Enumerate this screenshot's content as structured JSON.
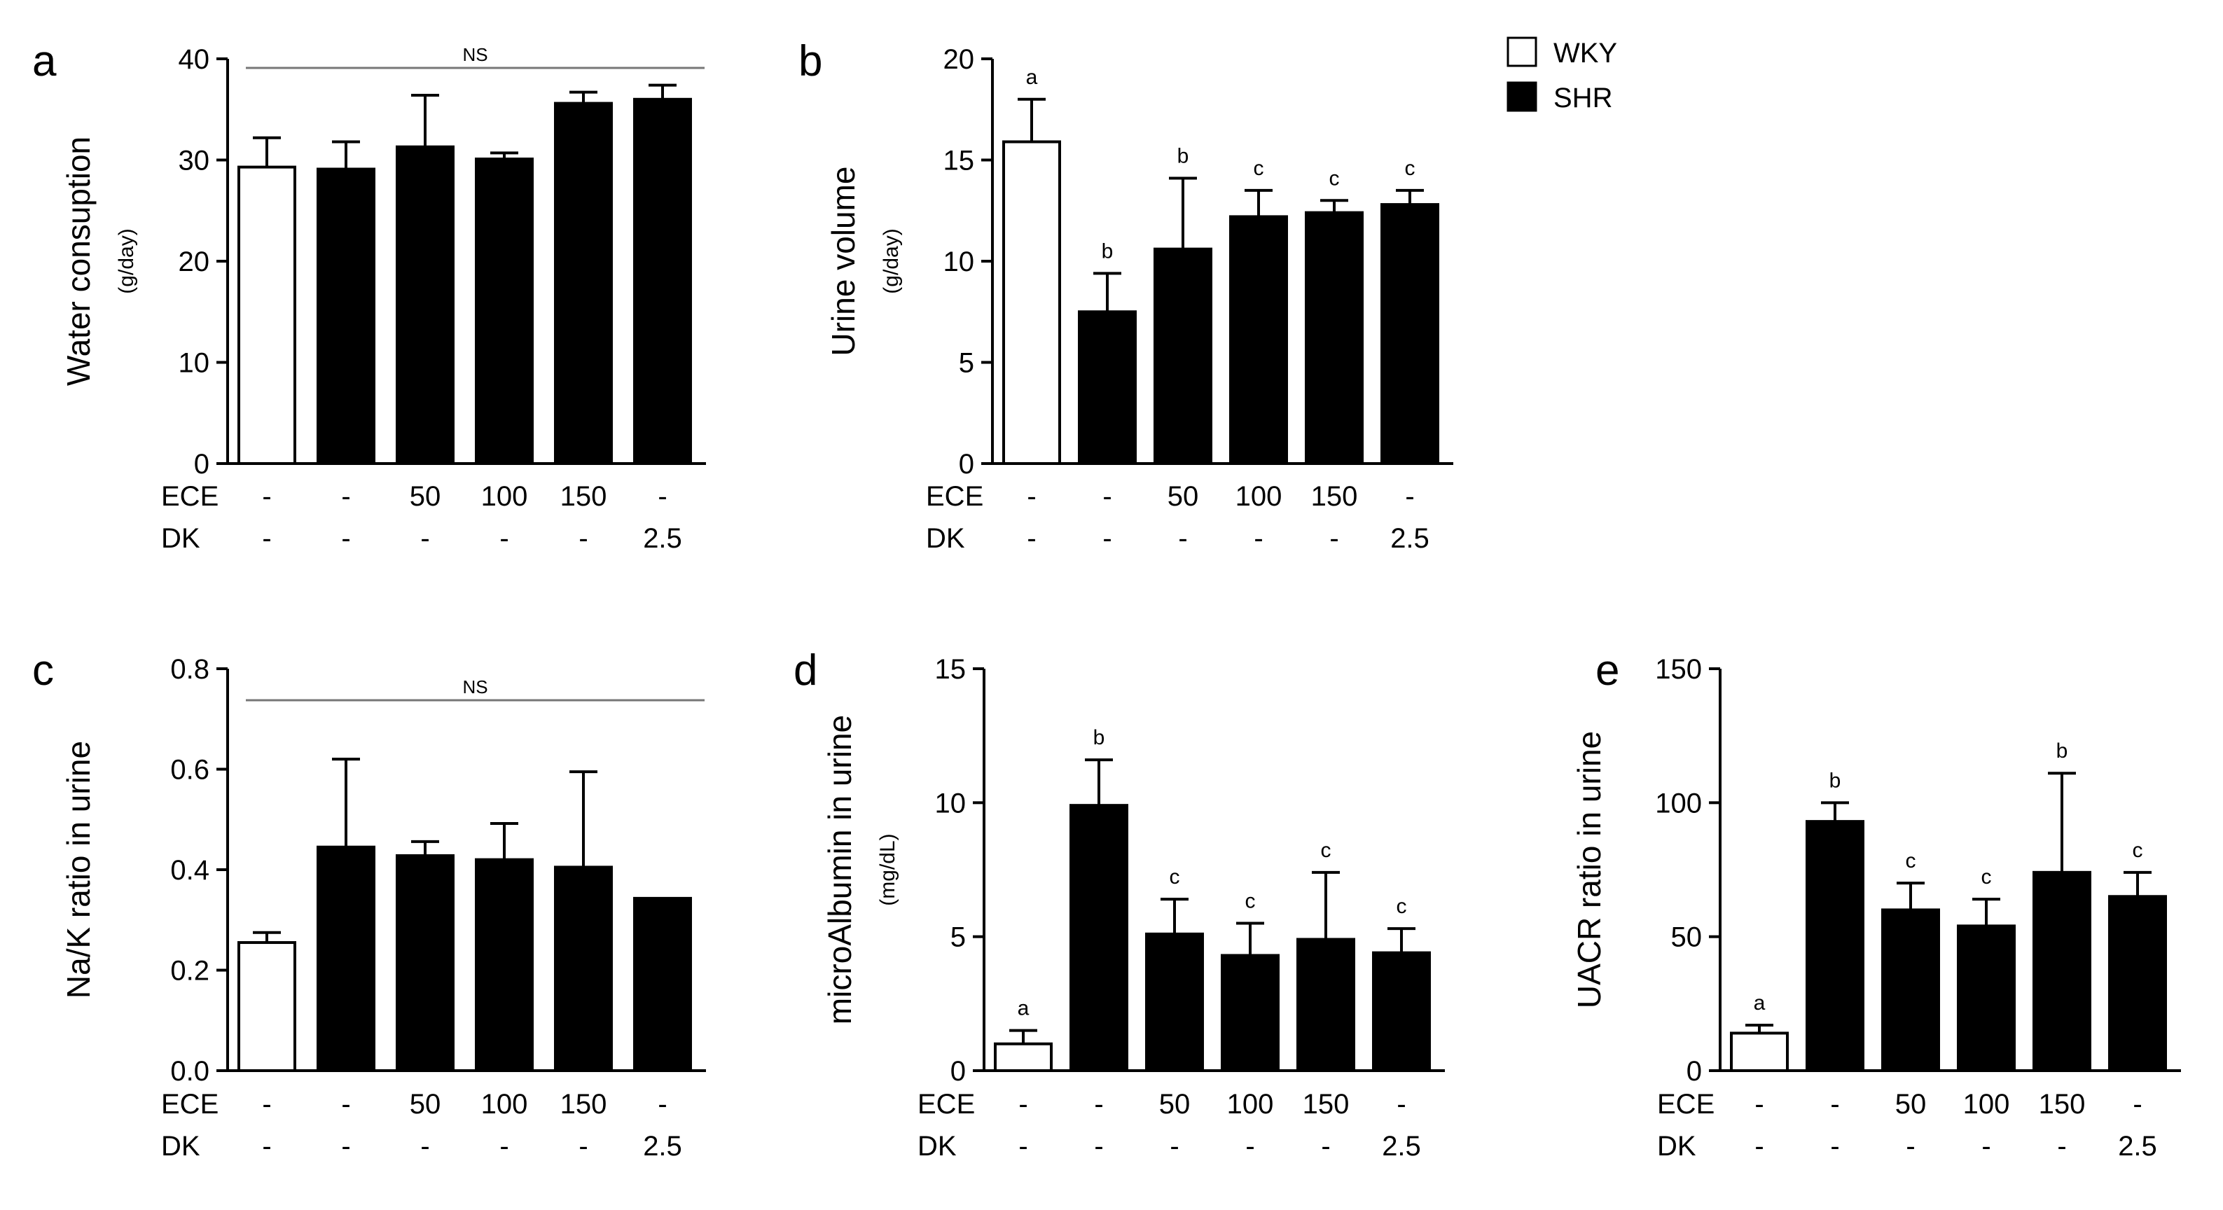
{
  "colors": {
    "wky": "#ffffff",
    "shr": "#000000",
    "ns_line": "#777777",
    "axis": "#000000"
  },
  "legend": [
    {
      "name": "WKY",
      "swatch": "#ffffff"
    },
    {
      "name": "SHR",
      "swatch": "#000000"
    }
  ],
  "row_labels": {
    "ece": "ECE",
    "dk": "DK"
  },
  "chart_data": [
    {
      "panel": "a",
      "type": "bar",
      "ylabel": "Water consuption",
      "yunit": "(g/day)",
      "ylim": [
        0,
        40
      ],
      "yticks": [
        0,
        10,
        20,
        30,
        40
      ],
      "ytick_labels": [
        "0",
        "10",
        "20",
        "30",
        "40"
      ],
      "values": [
        29.3,
        29.1,
        31.3,
        30.1,
        35.6,
        36.0
      ],
      "errors": [
        2.9,
        2.7,
        5.1,
        0.6,
        1.1,
        1.4
      ],
      "groups": [
        "WKY",
        "SHR",
        "SHR",
        "SHR",
        "SHR",
        "SHR"
      ],
      "ece": [
        "-",
        "-",
        "50",
        "100",
        "150",
        "-"
      ],
      "dk": [
        "-",
        "-",
        "-",
        "-",
        "-",
        "2.5"
      ],
      "sig": [
        "",
        "",
        "",
        "",
        "",
        ""
      ],
      "ns_label": "NS"
    },
    {
      "panel": "b",
      "type": "bar",
      "ylabel": "Urine volume",
      "yunit": "(g/day)",
      "ylim": [
        0,
        20
      ],
      "yticks": [
        0,
        5,
        10,
        15,
        20
      ],
      "ytick_labels": [
        "0",
        "5",
        "10",
        "15",
        "20"
      ],
      "values": [
        15.9,
        7.5,
        10.6,
        12.2,
        12.4,
        12.8
      ],
      "errors": [
        2.1,
        1.9,
        3.5,
        1.3,
        0.6,
        0.7
      ],
      "groups": [
        "WKY",
        "SHR",
        "SHR",
        "SHR",
        "SHR",
        "SHR"
      ],
      "ece": [
        "-",
        "-",
        "50",
        "100",
        "150",
        "-"
      ],
      "dk": [
        "-",
        "-",
        "-",
        "-",
        "-",
        "2.5"
      ],
      "sig": [
        "a",
        "b",
        "b",
        "c",
        "c",
        "c"
      ],
      "ns_label": ""
    },
    {
      "panel": "c",
      "type": "bar",
      "ylabel": "Na/K ratio in urine",
      "yunit": "",
      "ylim": [
        0,
        0.8
      ],
      "yticks": [
        0,
        0.2,
        0.4,
        0.6,
        0.8
      ],
      "ytick_labels": [
        "0.0",
        "0.2",
        "0.4",
        "0.6",
        "0.8"
      ],
      "values": [
        0.255,
        0.445,
        0.428,
        0.42,
        0.405,
        0.343
      ],
      "errors": [
        0.02,
        0.175,
        0.028,
        0.072,
        0.19,
        0.0
      ],
      "groups": [
        "WKY",
        "SHR",
        "SHR",
        "SHR",
        "SHR",
        "SHR"
      ],
      "ece": [
        "-",
        "-",
        "50",
        "100",
        "150",
        "-"
      ],
      "dk": [
        "-",
        "-",
        "-",
        "-",
        "-",
        "2.5"
      ],
      "sig": [
        "",
        "",
        "",
        "",
        "",
        ""
      ],
      "ns_label": "NS"
    },
    {
      "panel": "d",
      "type": "bar",
      "ylabel": "microAlbumin in urine",
      "yunit": "(mg/dL)",
      "ylim": [
        0,
        15
      ],
      "yticks": [
        0,
        5,
        10,
        15
      ],
      "ytick_labels": [
        "0",
        "5",
        "10",
        "15"
      ],
      "values": [
        1.0,
        9.9,
        5.1,
        4.3,
        4.9,
        4.4
      ],
      "errors": [
        0.5,
        1.7,
        1.3,
        1.2,
        2.5,
        0.9
      ],
      "groups": [
        "WKY",
        "SHR",
        "SHR",
        "SHR",
        "SHR",
        "SHR"
      ],
      "ece": [
        "-",
        "-",
        "50",
        "100",
        "150",
        "-"
      ],
      "dk": [
        "-",
        "-",
        "-",
        "-",
        "-",
        "2.5"
      ],
      "sig": [
        "a",
        "b",
        "c",
        "c",
        "c",
        "c"
      ],
      "ns_label": ""
    },
    {
      "panel": "e",
      "type": "bar",
      "ylabel": "UACR ratio in urine",
      "yunit": "",
      "ylim": [
        0,
        150
      ],
      "yticks": [
        0,
        50,
        100,
        150
      ],
      "ytick_labels": [
        "0",
        "50",
        "100",
        "150"
      ],
      "values": [
        14,
        93,
        60,
        54,
        74,
        65
      ],
      "errors": [
        3,
        7,
        10,
        10,
        37,
        9
      ],
      "groups": [
        "WKY",
        "SHR",
        "SHR",
        "SHR",
        "SHR",
        "SHR"
      ],
      "ece": [
        "-",
        "-",
        "50",
        "100",
        "150",
        "-"
      ],
      "dk": [
        "-",
        "-",
        "-",
        "-",
        "-",
        "2.5"
      ],
      "sig": [
        "a",
        "b",
        "c",
        "c",
        "b",
        "c"
      ],
      "ns_label": ""
    }
  ]
}
